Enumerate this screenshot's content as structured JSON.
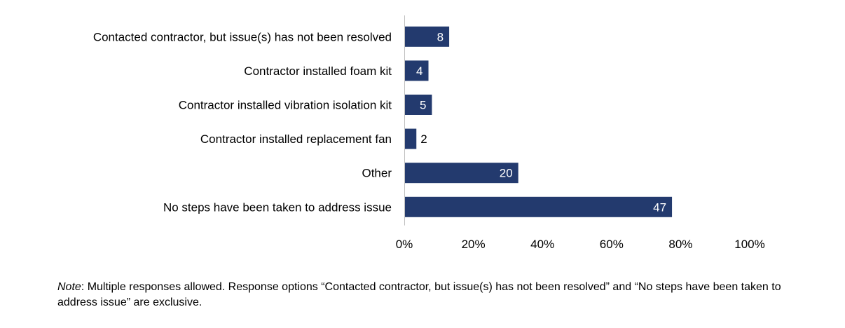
{
  "chart_data": {
    "type": "bar",
    "orientation": "horizontal",
    "categories": [
      "Contacted contractor, but issue(s) has not been resolved",
      "Contractor installed foam kit",
      "Contractor installed vibration isolation kit",
      "Contractor installed replacement fan",
      "Other",
      "No steps have been taken to address issue"
    ],
    "values": [
      8,
      4,
      5,
      2,
      20,
      47
    ],
    "percent_values": [
      13,
      7,
      8,
      3.5,
      33,
      77.5
    ],
    "data_labels": [
      "8",
      "4",
      "5",
      "2",
      "20",
      "47"
    ],
    "xlim": [
      0,
      100
    ],
    "x_ticks": [
      "0%",
      "20%",
      "40%",
      "60%",
      "80%",
      "100%"
    ],
    "bar_color": "#233a6e",
    "grid": false,
    "legend": "none"
  },
  "note": {
    "prefix": "Note",
    "text": ": Multiple responses allowed. Response options “Contacted contractor, but issue(s) has not been resolved” and “No steps have been taken to address issue” are exclusive."
  }
}
